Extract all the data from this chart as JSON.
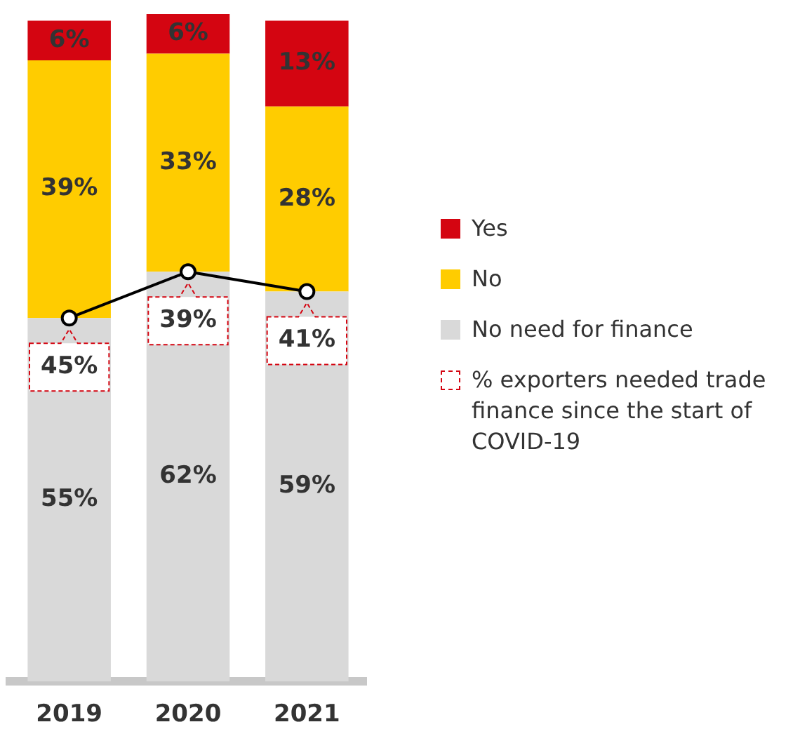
{
  "chart_data": {
    "type": "bar",
    "stacked": true,
    "categories": [
      "2019",
      "2020",
      "2021"
    ],
    "series": [
      {
        "name": "No need for finance",
        "color": "#d9d9d9",
        "values": [
          55,
          62,
          59
        ],
        "value_labels": [
          "55%",
          "62%",
          "59%"
        ]
      },
      {
        "name": "No",
        "color": "#ffcc00",
        "values": [
          39,
          33,
          28
        ],
        "value_labels": [
          "39%",
          "33%",
          "28%"
        ]
      },
      {
        "name": "Yes",
        "color": "#d40511",
        "values": [
          6,
          6,
          13
        ],
        "value_labels": [
          "6%",
          "6%",
          "13%"
        ]
      },
      {
        "type": "line",
        "color": "#000000",
        "values": [
          55,
          62,
          59
        ]
      }
    ],
    "annotations": [
      "% exporters needed trade finance since the start of COVID-19",
      {
        "text": "45%",
        "x": "2019",
        "y": 55
      },
      {
        "text": "39%",
        "x": "2020",
        "y": 62
      },
      {
        "text": "41%",
        "x": "2021",
        "y": 59
      }
    ],
    "ylim": [
      0,
      101
    ],
    "tick_labels": "x",
    "grid": false,
    "legend": "right",
    "marker": "circle",
    "line_style": "solid"
  }
}
